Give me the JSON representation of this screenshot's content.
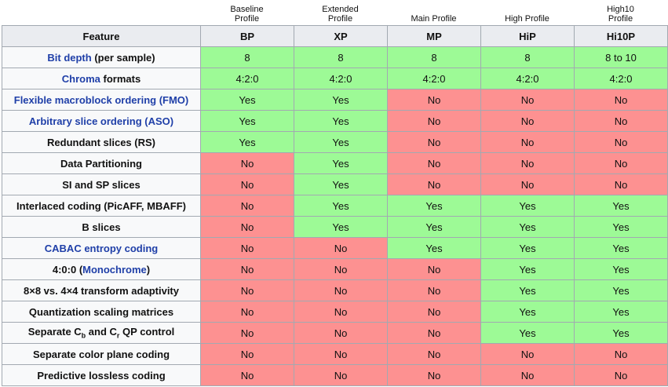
{
  "profiles": [
    "Baseline Profile",
    "Extended Profile",
    "Main Profile",
    "High Profile",
    "High10 Profile"
  ],
  "header": [
    "Feature",
    "BP",
    "XP",
    "MP",
    "HiP",
    "Hi10P"
  ],
  "link_color": "#1f3fa8",
  "rows": [
    {
      "feature": [
        {
          "text": "Bit depth",
          "link": true
        },
        {
          "text": " (per sample)"
        }
      ],
      "cells": [
        8,
        8,
        8,
        8,
        "8 to 10"
      ],
      "colors": [
        "#9dfa96",
        "#9dfa96",
        "#9dfa96",
        "#9dfa96",
        "#9dfa96"
      ]
    },
    {
      "feature": [
        {
          "text": "Chroma",
          "link": true
        },
        {
          "text": " formats"
        }
      ],
      "cells": [
        "4:2:0",
        "4:2:0",
        "4:2:0",
        "4:2:0",
        "4:2:0"
      ],
      "colors": [
        "#9dfa96",
        "#9dfa96",
        "#9dfa96",
        "#9dfa96",
        "#9dfa96"
      ]
    },
    {
      "feature": [
        {
          "text": "Flexible macroblock ordering (FMO)",
          "link": true
        }
      ],
      "cells": [
        "Yes",
        "Yes",
        "No",
        "No",
        "No"
      ],
      "colors": [
        "#9dfa96",
        "#9dfa96",
        "#fd9191",
        "#fd9191",
        "#fd9191"
      ]
    },
    {
      "feature": [
        {
          "text": "Arbitrary slice ordering (ASO)",
          "link": true
        }
      ],
      "cells": [
        "Yes",
        "Yes",
        "No",
        "No",
        "No"
      ],
      "colors": [
        "#9dfa96",
        "#9dfa96",
        "#fd9191",
        "#fd9191",
        "#fd9191"
      ]
    },
    {
      "feature": [
        {
          "text": "Redundant slices (RS)"
        }
      ],
      "cells": [
        "Yes",
        "Yes",
        "No",
        "No",
        "No"
      ],
      "colors": [
        "#9dfa96",
        "#9dfa96",
        "#fd9191",
        "#fd9191",
        "#fd9191"
      ]
    },
    {
      "feature": [
        {
          "text": "Data Partitioning"
        }
      ],
      "cells": [
        "No",
        "Yes",
        "No",
        "No",
        "No"
      ],
      "colors": [
        "#fd9191",
        "#9dfa96",
        "#fd9191",
        "#fd9191",
        "#fd9191"
      ]
    },
    {
      "feature": [
        {
          "text": "SI and SP slices"
        }
      ],
      "cells": [
        "No",
        "Yes",
        "No",
        "No",
        "No"
      ],
      "colors": [
        "#fd9191",
        "#9dfa96",
        "#fd9191",
        "#fd9191",
        "#fd9191"
      ]
    },
    {
      "feature": [
        {
          "text": "Interlaced coding (PicAFF, MBAFF)"
        }
      ],
      "cells": [
        "No",
        "Yes",
        "Yes",
        "Yes",
        "Yes"
      ],
      "colors": [
        "#fd9191",
        "#9dfa96",
        "#9dfa96",
        "#9dfa96",
        "#9dfa96"
      ]
    },
    {
      "feature": [
        {
          "text": "B slices"
        }
      ],
      "cells": [
        "No",
        "Yes",
        "Yes",
        "Yes",
        "Yes"
      ],
      "colors": [
        "#fd9191",
        "#9dfa96",
        "#9dfa96",
        "#9dfa96",
        "#9dfa96"
      ]
    },
    {
      "feature": [
        {
          "text": "CABAC entropy coding",
          "link": true
        }
      ],
      "cells": [
        "No",
        "No",
        "Yes",
        "Yes",
        "Yes"
      ],
      "colors": [
        "#fd9191",
        "#fd9191",
        "#9dfa96",
        "#9dfa96",
        "#9dfa96"
      ]
    },
    {
      "feature": [
        {
          "text": "4:0:0 ("
        },
        {
          "text": "Monochrome",
          "link": true
        },
        {
          "text": ")"
        }
      ],
      "cells": [
        "No",
        "No",
        "No",
        "Yes",
        "Yes"
      ],
      "colors": [
        "#fd9191",
        "#fd9191",
        "#fd9191",
        "#9dfa96",
        "#9dfa96"
      ]
    },
    {
      "feature": [
        {
          "text": "8×8 vs. 4×4 transform adaptivity"
        }
      ],
      "cells": [
        "No",
        "No",
        "No",
        "Yes",
        "Yes"
      ],
      "colors": [
        "#fd9191",
        "#fd9191",
        "#fd9191",
        "#9dfa96",
        "#9dfa96"
      ]
    },
    {
      "feature": [
        {
          "text": "Quantization scaling matrices"
        }
      ],
      "cells": [
        "No",
        "No",
        "No",
        "Yes",
        "Yes"
      ],
      "colors": [
        "#fd9191",
        "#fd9191",
        "#fd9191",
        "#9dfa96",
        "#9dfa96"
      ]
    },
    {
      "feature": [
        {
          "text": "Separate C"
        },
        {
          "text": "b",
          "sub": true
        },
        {
          "text": " and C"
        },
        {
          "text": "r",
          "sub": true
        },
        {
          "text": " QP control"
        }
      ],
      "cells": [
        "No",
        "No",
        "No",
        "Yes",
        "Yes"
      ],
      "colors": [
        "#fd9191",
        "#fd9191",
        "#fd9191",
        "#9dfa96",
        "#9dfa96"
      ]
    },
    {
      "feature": [
        {
          "text": "Separate color plane coding"
        }
      ],
      "cells": [
        "No",
        "No",
        "No",
        "No",
        "No"
      ],
      "colors": [
        "#fd9191",
        "#fd9191",
        "#fd9191",
        "#fd9191",
        "#fd9191"
      ]
    },
    {
      "feature": [
        {
          "text": "Predictive lossless coding"
        }
      ],
      "cells": [
        "No",
        "No",
        "No",
        "No",
        "No"
      ],
      "colors": [
        "#fd9191",
        "#fd9191",
        "#fd9191",
        "#fd9191",
        "#fd9191"
      ]
    }
  ]
}
